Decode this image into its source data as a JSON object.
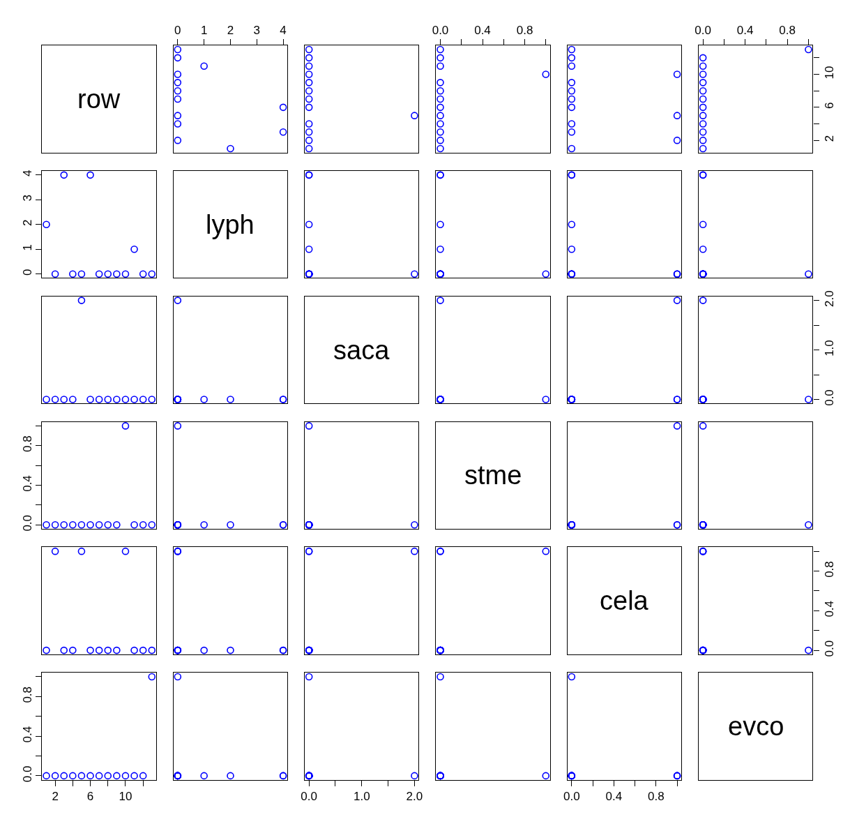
{
  "chart_data": [
    {
      "type": "other",
      "title": "row"
    },
    {
      "type": "scatter",
      "x": [
        2,
        0,
        4,
        0,
        0,
        4,
        0,
        0,
        0,
        0,
        1,
        0,
        0
      ],
      "values": [
        1,
        2,
        3,
        4,
        5,
        6,
        7,
        8,
        9,
        10,
        11,
        12,
        13
      ],
      "xlim": [
        -0.16,
        4.16
      ],
      "ylim": [
        0.52,
        13.48
      ],
      "xticks": [
        0,
        1,
        2,
        3,
        4
      ],
      "tick_labels": "x",
      "color": "#0000ff",
      "marker": "circle"
    },
    {
      "type": "scatter",
      "x": [
        0,
        0,
        0,
        0,
        2,
        0,
        0,
        0,
        0,
        0,
        0,
        0,
        0
      ],
      "values": [
        1,
        2,
        3,
        4,
        5,
        6,
        7,
        8,
        9,
        10,
        11,
        12,
        13
      ],
      "xlim": [
        -0.08,
        2.08
      ],
      "ylim": [
        0.52,
        13.48
      ],
      "tick_labels": false,
      "color": "#0000ff",
      "marker": "circle"
    },
    {
      "type": "scatter",
      "x": [
        0,
        0,
        0,
        0,
        0,
        0,
        0,
        0,
        0,
        1,
        0,
        0,
        0
      ],
      "values": [
        1,
        2,
        3,
        4,
        5,
        6,
        7,
        8,
        9,
        10,
        11,
        12,
        13
      ],
      "xlim": [
        -0.04,
        1.04
      ],
      "ylim": [
        0.52,
        13.48
      ],
      "xticks": [
        {
          "value": 0,
          "label": "0.0"
        },
        {
          "value": 0.2,
          "label": null
        },
        {
          "value": 0.4,
          "label": "0.4"
        },
        {
          "value": 0.6,
          "label": null
        },
        {
          "value": 0.8,
          "label": "0.8"
        },
        {
          "value": 1,
          "label": null
        }
      ],
      "tick_labels": "x",
      "color": "#0000ff",
      "marker": "circle"
    },
    {
      "type": "scatter",
      "x": [
        0,
        1,
        0,
        0,
        1,
        0,
        0,
        0,
        0,
        1,
        0,
        0,
        0
      ],
      "values": [
        1,
        2,
        3,
        4,
        5,
        6,
        7,
        8,
        9,
        10,
        11,
        12,
        13
      ],
      "xlim": [
        -0.04,
        1.04
      ],
      "ylim": [
        0.52,
        13.48
      ],
      "tick_labels": false,
      "color": "#0000ff",
      "marker": "circle"
    },
    {
      "type": "scatter",
      "x": [
        0,
        0,
        0,
        0,
        0,
        0,
        0,
        0,
        0,
        0,
        0,
        0,
        1
      ],
      "values": [
        1,
        2,
        3,
        4,
        5,
        6,
        7,
        8,
        9,
        10,
        11,
        12,
        13
      ],
      "xlim": [
        -0.04,
        1.04
      ],
      "ylim": [
        0.52,
        13.48
      ],
      "xticks": [
        {
          "value": 0,
          "label": "0.0"
        },
        {
          "value": 0.2,
          "label": null
        },
        {
          "value": 0.4,
          "label": "0.4"
        },
        {
          "value": 0.6,
          "label": null
        },
        {
          "value": 0.8,
          "label": "0.8"
        },
        {
          "value": 1,
          "label": null
        }
      ],
      "yticks": [
        2,
        {
          "value": 4,
          "label": null
        },
        6,
        {
          "value": 8,
          "label": null
        },
        10,
        {
          "value": 12,
          "label": null
        }
      ],
      "color": "#0000ff",
      "marker": "circle"
    },
    {
      "type": "scatter",
      "x": [
        1,
        2,
        3,
        4,
        5,
        6,
        7,
        8,
        9,
        10,
        11,
        12,
        13
      ],
      "values": [
        2,
        0,
        4,
        0,
        0,
        4,
        0,
        0,
        0,
        0,
        1,
        0,
        0
      ],
      "xlim": [
        0.52,
        13.48
      ],
      "ylim": [
        -0.16,
        4.16
      ],
      "yticks": [
        0,
        1,
        2,
        3,
        4
      ],
      "tick_labels": "y",
      "color": "#0000ff",
      "marker": "circle"
    },
    {
      "type": "other",
      "title": "lyph"
    },
    {
      "type": "scatter",
      "x": [
        0,
        0,
        0,
        0,
        2,
        0,
        0,
        0,
        0,
        0,
        0,
        0,
        0
      ],
      "values": [
        2,
        0,
        4,
        0,
        0,
        4,
        0,
        0,
        0,
        0,
        1,
        0,
        0
      ],
      "xlim": [
        -0.08,
        2.08
      ],
      "ylim": [
        -0.16,
        4.16
      ],
      "tick_labels": false,
      "color": "#0000ff",
      "marker": "circle"
    },
    {
      "type": "scatter",
      "x": [
        0,
        0,
        0,
        0,
        0,
        0,
        0,
        0,
        0,
        1,
        0,
        0,
        0
      ],
      "values": [
        2,
        0,
        4,
        0,
        0,
        4,
        0,
        0,
        0,
        0,
        1,
        0,
        0
      ],
      "xlim": [
        -0.04,
        1.04
      ],
      "ylim": [
        -0.16,
        4.16
      ],
      "tick_labels": false,
      "color": "#0000ff",
      "marker": "circle"
    },
    {
      "type": "scatter",
      "x": [
        0,
        1,
        0,
        0,
        1,
        0,
        0,
        0,
        0,
        1,
        0,
        0,
        0
      ],
      "values": [
        2,
        0,
        4,
        0,
        0,
        4,
        0,
        0,
        0,
        0,
        1,
        0,
        0
      ],
      "xlim": [
        -0.04,
        1.04
      ],
      "ylim": [
        -0.16,
        4.16
      ],
      "tick_labels": false,
      "color": "#0000ff",
      "marker": "circle"
    },
    {
      "type": "scatter",
      "x": [
        0,
        0,
        0,
        0,
        0,
        0,
        0,
        0,
        0,
        0,
        0,
        0,
        1
      ],
      "values": [
        2,
        0,
        4,
        0,
        0,
        4,
        0,
        0,
        0,
        0,
        1,
        0,
        0
      ],
      "xlim": [
        -0.04,
        1.04
      ],
      "ylim": [
        -0.16,
        4.16
      ],
      "tick_labels": false,
      "color": "#0000ff",
      "marker": "circle"
    },
    {
      "type": "scatter",
      "x": [
        1,
        2,
        3,
        4,
        5,
        6,
        7,
        8,
        9,
        10,
        11,
        12,
        13
      ],
      "values": [
        0,
        0,
        0,
        0,
        2,
        0,
        0,
        0,
        0,
        0,
        0,
        0,
        0
      ],
      "xlim": [
        0.52,
        13.48
      ],
      "ylim": [
        -0.08,
        2.08
      ],
      "tick_labels": false,
      "color": "#0000ff",
      "marker": "circle"
    },
    {
      "type": "scatter",
      "x": [
        2,
        0,
        4,
        0,
        0,
        4,
        0,
        0,
        0,
        0,
        1,
        0,
        0
      ],
      "values": [
        0,
        0,
        0,
        0,
        2,
        0,
        0,
        0,
        0,
        0,
        0,
        0,
        0
      ],
      "xlim": [
        -0.16,
        4.16
      ],
      "ylim": [
        -0.08,
        2.08
      ],
      "tick_labels": false,
      "color": "#0000ff",
      "marker": "circle"
    },
    {
      "type": "other",
      "title": "saca"
    },
    {
      "type": "scatter",
      "x": [
        0,
        0,
        0,
        0,
        0,
        0,
        0,
        0,
        0,
        1,
        0,
        0,
        0
      ],
      "values": [
        0,
        0,
        0,
        0,
        2,
        0,
        0,
        0,
        0,
        0,
        0,
        0,
        0
      ],
      "xlim": [
        -0.04,
        1.04
      ],
      "ylim": [
        -0.08,
        2.08
      ],
      "tick_labels": false,
      "color": "#0000ff",
      "marker": "circle"
    },
    {
      "type": "scatter",
      "x": [
        0,
        1,
        0,
        0,
        1,
        0,
        0,
        0,
        0,
        1,
        0,
        0,
        0
      ],
      "values": [
        0,
        0,
        0,
        0,
        2,
        0,
        0,
        0,
        0,
        0,
        0,
        0,
        0
      ],
      "xlim": [
        -0.04,
        1.04
      ],
      "ylim": [
        -0.08,
        2.08
      ],
      "tick_labels": false,
      "color": "#0000ff",
      "marker": "circle"
    },
    {
      "type": "scatter",
      "x": [
        0,
        0,
        0,
        0,
        0,
        0,
        0,
        0,
        0,
        0,
        0,
        0,
        1
      ],
      "values": [
        0,
        0,
        0,
        0,
        2,
        0,
        0,
        0,
        0,
        0,
        0,
        0,
        0
      ],
      "xlim": [
        -0.04,
        1.04
      ],
      "ylim": [
        -0.08,
        2.08
      ],
      "yticks": [
        {
          "value": 0,
          "label": "0.0"
        },
        {
          "value": 0.5,
          "label": null
        },
        {
          "value": 1,
          "label": "1.0"
        },
        {
          "value": 1.5,
          "label": null
        },
        {
          "value": 2,
          "label": "2.0"
        }
      ],
      "tick_labels": "y",
      "color": "#0000ff",
      "marker": "circle"
    },
    {
      "type": "scatter",
      "x": [
        1,
        2,
        3,
        4,
        5,
        6,
        7,
        8,
        9,
        10,
        11,
        12,
        13
      ],
      "values": [
        0,
        0,
        0,
        0,
        0,
        0,
        0,
        0,
        0,
        1,
        0,
        0,
        0
      ],
      "xlim": [
        0.52,
        13.48
      ],
      "ylim": [
        -0.04,
        1.04
      ],
      "yticks": [
        {
          "value": 0,
          "label": "0.0"
        },
        {
          "value": 0.2,
          "label": null
        },
        {
          "value": 0.4,
          "label": "0.4"
        },
        {
          "value": 0.6,
          "label": null
        },
        {
          "value": 0.8,
          "label": "0.8"
        },
        {
          "value": 1,
          "label": null
        }
      ],
      "tick_labels": "y",
      "color": "#0000ff",
      "marker": "circle"
    },
    {
      "type": "scatter",
      "x": [
        2,
        0,
        4,
        0,
        0,
        4,
        0,
        0,
        0,
        0,
        1,
        0,
        0
      ],
      "values": [
        0,
        0,
        0,
        0,
        0,
        0,
        0,
        0,
        0,
        1,
        0,
        0,
        0
      ],
      "xlim": [
        -0.16,
        4.16
      ],
      "ylim": [
        -0.04,
        1.04
      ],
      "tick_labels": false,
      "color": "#0000ff",
      "marker": "circle"
    },
    {
      "type": "scatter",
      "x": [
        0,
        0,
        0,
        0,
        2,
        0,
        0,
        0,
        0,
        0,
        0,
        0,
        0
      ],
      "values": [
        0,
        0,
        0,
        0,
        0,
        0,
        0,
        0,
        0,
        1,
        0,
        0,
        0
      ],
      "xlim": [
        -0.08,
        2.08
      ],
      "ylim": [
        -0.04,
        1.04
      ],
      "tick_labels": false,
      "color": "#0000ff",
      "marker": "circle"
    },
    {
      "type": "other",
      "title": "stme"
    },
    {
      "type": "scatter",
      "x": [
        0,
        1,
        0,
        0,
        1,
        0,
        0,
        0,
        0,
        1,
        0,
        0,
        0
      ],
      "values": [
        0,
        0,
        0,
        0,
        0,
        0,
        0,
        0,
        0,
        1,
        0,
        0,
        0
      ],
      "xlim": [
        -0.04,
        1.04
      ],
      "ylim": [
        -0.04,
        1.04
      ],
      "tick_labels": false,
      "color": "#0000ff",
      "marker": "circle"
    },
    {
      "type": "scatter",
      "x": [
        0,
        0,
        0,
        0,
        0,
        0,
        0,
        0,
        0,
        0,
        0,
        0,
        1
      ],
      "values": [
        0,
        0,
        0,
        0,
        0,
        0,
        0,
        0,
        0,
        1,
        0,
        0,
        0
      ],
      "xlim": [
        -0.04,
        1.04
      ],
      "ylim": [
        -0.04,
        1.04
      ],
      "tick_labels": false,
      "color": "#0000ff",
      "marker": "circle"
    },
    {
      "type": "scatter",
      "x": [
        1,
        2,
        3,
        4,
        5,
        6,
        7,
        8,
        9,
        10,
        11,
        12,
        13
      ],
      "values": [
        0,
        1,
        0,
        0,
        1,
        0,
        0,
        0,
        0,
        1,
        0,
        0,
        0
      ],
      "xlim": [
        0.52,
        13.48
      ],
      "ylim": [
        -0.04,
        1.04
      ],
      "tick_labels": false,
      "color": "#0000ff",
      "marker": "circle"
    },
    {
      "type": "scatter",
      "x": [
        2,
        0,
        4,
        0,
        0,
        4,
        0,
        0,
        0,
        0,
        1,
        0,
        0
      ],
      "values": [
        0,
        1,
        0,
        0,
        1,
        0,
        0,
        0,
        0,
        1,
        0,
        0,
        0
      ],
      "xlim": [
        -0.16,
        4.16
      ],
      "ylim": [
        -0.04,
        1.04
      ],
      "tick_labels": false,
      "color": "#0000ff",
      "marker": "circle"
    },
    {
      "type": "scatter",
      "x": [
        0,
        0,
        0,
        0,
        2,
        0,
        0,
        0,
        0,
        0,
        0,
        0,
        0
      ],
      "values": [
        0,
        1,
        0,
        0,
        1,
        0,
        0,
        0,
        0,
        1,
        0,
        0,
        0
      ],
      "xlim": [
        -0.08,
        2.08
      ],
      "ylim": [
        -0.04,
        1.04
      ],
      "tick_labels": false,
      "color": "#0000ff",
      "marker": "circle"
    },
    {
      "type": "scatter",
      "x": [
        0,
        0,
        0,
        0,
        0,
        0,
        0,
        0,
        0,
        1,
        0,
        0,
        0
      ],
      "values": [
        0,
        1,
        0,
        0,
        1,
        0,
        0,
        0,
        0,
        1,
        0,
        0,
        0
      ],
      "xlim": [
        -0.04,
        1.04
      ],
      "ylim": [
        -0.04,
        1.04
      ],
      "tick_labels": false,
      "color": "#0000ff",
      "marker": "circle"
    },
    {
      "type": "other",
      "title": "cela"
    },
    {
      "type": "scatter",
      "x": [
        0,
        0,
        0,
        0,
        0,
        0,
        0,
        0,
        0,
        0,
        0,
        0,
        1
      ],
      "values": [
        0,
        1,
        0,
        0,
        1,
        0,
        0,
        0,
        0,
        1,
        0,
        0,
        0
      ],
      "xlim": [
        -0.04,
        1.04
      ],
      "ylim": [
        -0.04,
        1.04
      ],
      "yticks": [
        {
          "value": 0,
          "label": "0.0"
        },
        {
          "value": 0.2,
          "label": null
        },
        {
          "value": 0.4,
          "label": "0.4"
        },
        {
          "value": 0.6,
          "label": null
        },
        {
          "value": 0.8,
          "label": "0.8"
        },
        {
          "value": 1,
          "label": null
        }
      ],
      "tick_labels": "y",
      "color": "#0000ff",
      "marker": "circle"
    },
    {
      "type": "scatter",
      "x": [
        1,
        2,
        3,
        4,
        5,
        6,
        7,
        8,
        9,
        10,
        11,
        12,
        13
      ],
      "values": [
        0,
        0,
        0,
        0,
        0,
        0,
        0,
        0,
        0,
        0,
        0,
        0,
        1
      ],
      "xlim": [
        0.52,
        13.48
      ],
      "ylim": [
        -0.04,
        1.04
      ],
      "xticks": [
        2,
        {
          "value": 4,
          "label": null
        },
        6,
        {
          "value": 8,
          "label": null
        },
        10,
        {
          "value": 12,
          "label": null
        }
      ],
      "yticks": [
        {
          "value": 0,
          "label": "0.0"
        },
        {
          "value": 0.2,
          "label": null
        },
        {
          "value": 0.4,
          "label": "0.4"
        },
        {
          "value": 0.6,
          "label": null
        },
        {
          "value": 0.8,
          "label": "0.8"
        },
        {
          "value": 1,
          "label": null
        }
      ],
      "color": "#0000ff",
      "marker": "circle"
    },
    {
      "type": "scatter",
      "x": [
        2,
        0,
        4,
        0,
        0,
        4,
        0,
        0,
        0,
        0,
        1,
        0,
        0
      ],
      "values": [
        0,
        0,
        0,
        0,
        0,
        0,
        0,
        0,
        0,
        0,
        0,
        0,
        1
      ],
      "xlim": [
        -0.16,
        4.16
      ],
      "ylim": [
        -0.04,
        1.04
      ],
      "tick_labels": false,
      "color": "#0000ff",
      "marker": "circle"
    },
    {
      "type": "scatter",
      "x": [
        0,
        0,
        0,
        0,
        2,
        0,
        0,
        0,
        0,
        0,
        0,
        0,
        0
      ],
      "values": [
        0,
        0,
        0,
        0,
        0,
        0,
        0,
        0,
        0,
        0,
        0,
        0,
        1
      ],
      "xlim": [
        -0.08,
        2.08
      ],
      "ylim": [
        -0.04,
        1.04
      ],
      "xticks": [
        {
          "value": 0,
          "label": "0.0"
        },
        {
          "value": 0.5,
          "label": null
        },
        {
          "value": 1,
          "label": "1.0"
        },
        {
          "value": 1.5,
          "label": null
        },
        {
          "value": 2,
          "label": "2.0"
        }
      ],
      "tick_labels": "x",
      "color": "#0000ff",
      "marker": "circle"
    },
    {
      "type": "scatter",
      "x": [
        0,
        0,
        0,
        0,
        0,
        0,
        0,
        0,
        0,
        1,
        0,
        0,
        0
      ],
      "values": [
        0,
        0,
        0,
        0,
        0,
        0,
        0,
        0,
        0,
        0,
        0,
        0,
        1
      ],
      "xlim": [
        -0.04,
        1.04
      ],
      "ylim": [
        -0.04,
        1.04
      ],
      "tick_labels": false,
      "color": "#0000ff",
      "marker": "circle"
    },
    {
      "type": "scatter",
      "x": [
        0,
        1,
        0,
        0,
        1,
        0,
        0,
        0,
        0,
        1,
        0,
        0,
        0
      ],
      "values": [
        0,
        0,
        0,
        0,
        0,
        0,
        0,
        0,
        0,
        0,
        0,
        0,
        1
      ],
      "xlim": [
        -0.04,
        1.04
      ],
      "ylim": [
        -0.04,
        1.04
      ],
      "xticks": [
        {
          "value": 0,
          "label": "0.0"
        },
        {
          "value": 0.2,
          "label": null
        },
        {
          "value": 0.4,
          "label": "0.4"
        },
        {
          "value": 0.6,
          "label": null
        },
        {
          "value": 0.8,
          "label": "0.8"
        },
        {
          "value": 1,
          "label": null
        }
      ],
      "tick_labels": "x",
      "color": "#0000ff",
      "marker": "circle"
    },
    {
      "type": "other",
      "title": "evco"
    }
  ]
}
